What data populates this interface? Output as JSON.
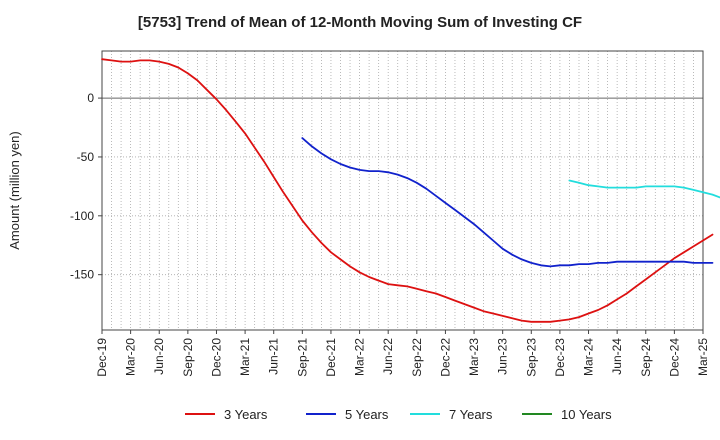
{
  "chart_data": {
    "type": "line",
    "title": "[5753]  Trend of Mean of 12-Month Moving Sum of Investing CF",
    "xlabel": "",
    "ylabel": "Amount (million yen)",
    "ylim": [
      -197,
      40
    ],
    "yticks": [
      0,
      -50,
      -100,
      -150
    ],
    "x_ticks": [
      "Dec-19",
      "Mar-20",
      "Jun-20",
      "Sep-20",
      "Dec-20",
      "Mar-21",
      "Jun-21",
      "Sep-21",
      "Dec-21",
      "Mar-22",
      "Jun-22",
      "Sep-22",
      "Dec-22",
      "Mar-23",
      "Jun-23",
      "Sep-23",
      "Dec-23",
      "Mar-24",
      "Jun-24",
      "Sep-24",
      "Dec-24",
      "Mar-25"
    ],
    "grid": true,
    "legend_position": "bottom",
    "series": [
      {
        "name": "3 Years",
        "color": "#dd1111",
        "start_index": 0,
        "values": [
          33,
          32,
          31,
          31,
          32,
          32,
          31,
          29,
          26,
          21,
          15,
          7,
          -1,
          -10,
          -20,
          -30,
          -42,
          -54,
          -67,
          -80,
          -92,
          -104,
          -114,
          -123,
          -131,
          -137,
          -143,
          -148,
          -152,
          -155,
          -158,
          -159,
          -160,
          -162,
          -164,
          -166,
          -169,
          -172,
          -175,
          -178,
          -181,
          -183,
          -185,
          -187,
          -189,
          -190,
          -190,
          -190,
          -189,
          -188,
          -186,
          -183,
          -180,
          -176,
          -171,
          -166,
          -160,
          -154,
          -148,
          -142,
          -136,
          -131,
          -126,
          -121,
          -116
        ]
      },
      {
        "name": "5 Years",
        "color": "#1122cc",
        "start_index": 21,
        "values": [
          -34,
          -41,
          -47,
          -52,
          -56,
          -59,
          -61,
          -62,
          -62,
          -63,
          -65,
          -68,
          -72,
          -77,
          -83,
          -89,
          -95,
          -101,
          -107,
          -114,
          -121,
          -128,
          -133,
          -137,
          -140,
          -142,
          -143,
          -142,
          -142,
          -141,
          -141,
          -140,
          -140,
          -139,
          -139,
          -139,
          -139,
          -139,
          -139,
          -139,
          -139,
          -140,
          -140,
          -140
        ]
      },
      {
        "name": "7 Years",
        "color": "#22dddd",
        "start_index": 49,
        "values": [
          -70,
          -72,
          -74,
          -75,
          -76,
          -76,
          -76,
          -76,
          -75,
          -75,
          -75,
          -75,
          -76,
          -78,
          -80,
          -82,
          -85
        ]
      },
      {
        "name": "10 Years",
        "color": "#228822",
        "start_index": 0,
        "values": []
      }
    ]
  }
}
